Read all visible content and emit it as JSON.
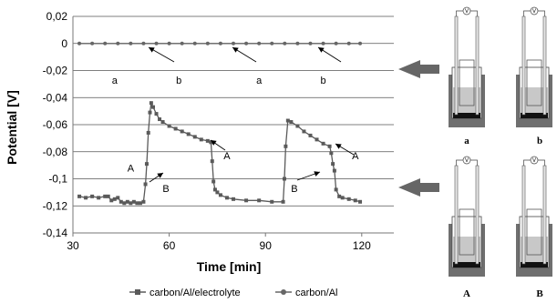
{
  "chart_data": {
    "type": "line",
    "xlabel": "Time [min]",
    "ylabel": "Potential [V]",
    "xlim": [
      30,
      130
    ],
    "ylim": [
      -0.14,
      0.02
    ],
    "xticks": [
      "30",
      "60",
      "90",
      "120"
    ],
    "yticks": [
      "0,02",
      "0",
      "-0,02",
      "-0,04",
      "-0,06",
      "-0,08",
      "-0,1",
      "-0,12",
      "-0,14"
    ],
    "grid": "horizontal",
    "legend_position": "bottom",
    "series": [
      {
        "name": "carbon/Al/electrolyte",
        "color": "#5a5a5a",
        "marker": "square",
        "x": [
          32,
          34,
          36,
          38,
          40,
          41,
          42,
          43,
          44,
          45,
          46,
          47,
          48,
          49,
          50,
          51,
          52,
          52.6,
          53.0,
          53.5,
          54.0,
          54.4,
          55,
          56,
          57,
          58,
          60,
          62,
          64,
          66,
          68,
          70,
          72,
          73,
          73.4,
          73.8,
          74.3,
          75,
          76,
          78,
          80,
          84,
          88,
          92,
          95.5,
          95.9,
          96.3,
          97,
          98,
          100,
          102,
          104,
          106,
          108,
          110,
          110.5,
          111,
          111.5,
          112,
          113,
          114,
          116,
          118,
          119.5
        ],
        "y": [
          -0.113,
          -0.114,
          -0.113,
          -0.114,
          -0.113,
          -0.113,
          -0.116,
          -0.115,
          -0.114,
          -0.117,
          -0.118,
          -0.117,
          -0.118,
          -0.117,
          -0.118,
          -0.118,
          -0.117,
          -0.104,
          -0.089,
          -0.066,
          -0.051,
          -0.044,
          -0.047,
          -0.052,
          -0.056,
          -0.058,
          -0.061,
          -0.063,
          -0.065,
          -0.067,
          -0.069,
          -0.071,
          -0.072,
          -0.073,
          -0.087,
          -0.102,
          -0.108,
          -0.11,
          -0.112,
          -0.114,
          -0.115,
          -0.116,
          -0.116,
          -0.117,
          -0.117,
          -0.1,
          -0.076,
          -0.057,
          -0.058,
          -0.061,
          -0.065,
          -0.068,
          -0.071,
          -0.074,
          -0.076,
          -0.081,
          -0.089,
          -0.094,
          -0.108,
          -0.113,
          -0.114,
          -0.115,
          -0.116,
          -0.117
        ]
      },
      {
        "name": "carbon/Al",
        "color": "#666666",
        "marker": "circle",
        "x": [
          32,
          36,
          40,
          44,
          48,
          52,
          56,
          60,
          64,
          68,
          72,
          76,
          80,
          84,
          88,
          92,
          96,
          100,
          104,
          108,
          112,
          116,
          119.5
        ],
        "y": [
          0,
          0,
          0,
          0,
          0,
          0,
          0,
          0,
          0,
          0,
          0,
          0,
          0,
          0,
          0,
          0,
          0,
          0,
          0,
          0,
          0,
          0,
          0
        ]
      }
    ],
    "annotations": [
      {
        "text": "a",
        "x": 43,
        "y": -0.027
      },
      {
        "text": "b",
        "x": 63,
        "y": -0.027
      },
      {
        "text": "a",
        "x": 88,
        "y": -0.027
      },
      {
        "text": "b",
        "x": 108,
        "y": -0.027
      },
      {
        "text": "A",
        "x": 48,
        "y": -0.092
      },
      {
        "text": "B",
        "x": 59,
        "y": -0.107
      },
      {
        "text": "A",
        "x": 78,
        "y": -0.083
      },
      {
        "text": "B",
        "x": 99,
        "y": -0.107
      },
      {
        "text": "A",
        "x": 118,
        "y": -0.083
      }
    ],
    "panel_labels": [
      "a",
      "b",
      "A",
      "B"
    ]
  }
}
